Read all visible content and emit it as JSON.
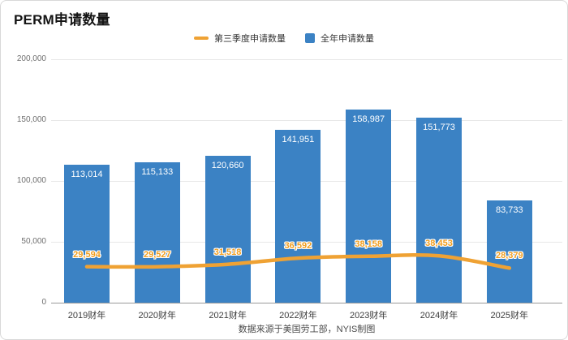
{
  "title": "PERM申请数量",
  "footer": "数据来源于美国劳工部，NYIS制图",
  "colors": {
    "bar": "#3b82c4",
    "line": "#efa234",
    "line_label": "#f09d1e"
  },
  "legend": [
    {
      "label": "第三季度申请数量",
      "swatch": "line",
      "color": "#efa234"
    },
    {
      "label": "全年申请数量",
      "swatch": "bar",
      "color": "#3b82c4"
    }
  ],
  "chart_data": {
    "type": "bar",
    "title": "PERM申请数量",
    "categories": [
      "2019财年",
      "2020财年",
      "2021财年",
      "2022财年",
      "2023财年",
      "2024财年",
      "2025财年"
    ],
    "series": [
      {
        "name": "全年申请数量",
        "type": "bar",
        "color": "#3b82c4",
        "values": [
          113014,
          115133,
          120660,
          141951,
          158987,
          151773,
          83733
        ]
      },
      {
        "name": "第三季度申请数量",
        "type": "line",
        "color": "#efa234",
        "values": [
          29594,
          29527,
          31518,
          36592,
          38158,
          38453,
          28379
        ]
      }
    ],
    "xlabel": "",
    "ylabel": "",
    "ylim": [
      0,
      200000
    ],
    "ytick_step": 50000,
    "ytick_labels": [
      "0",
      "50,000",
      "100,000",
      "150,000",
      "200,000"
    ],
    "grid": true,
    "legend_position": "top"
  }
}
